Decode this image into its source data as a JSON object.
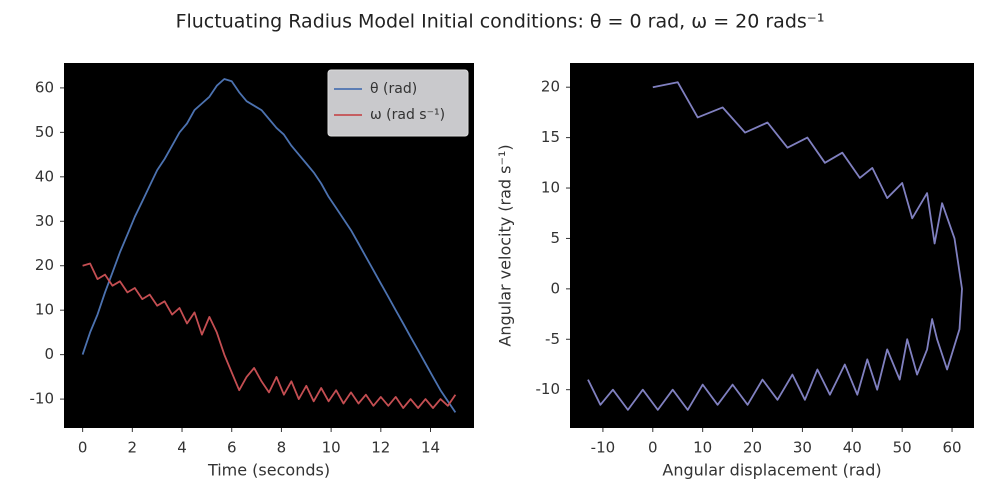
{
  "title": "Fluctuating Radius Model Initial conditions: θ = 0 rad, ω = 20 rads⁻¹",
  "chart_data": [
    {
      "type": "line",
      "xlabel": "Time (seconds)",
      "legend": "upper right",
      "x": [
        0,
        0.3,
        0.6,
        0.9,
        1.2,
        1.5,
        1.8,
        2.1,
        2.4,
        2.7,
        3.0,
        3.3,
        3.6,
        3.9,
        4.2,
        4.5,
        4.8,
        5.1,
        5.4,
        5.7,
        6.0,
        6.3,
        6.6,
        6.9,
        7.2,
        7.5,
        7.8,
        8.1,
        8.4,
        8.7,
        9.0,
        9.3,
        9.6,
        9.9,
        10.2,
        10.5,
        10.8,
        11.1,
        11.4,
        11.7,
        12.0,
        12.3,
        12.6,
        12.9,
        13.2,
        13.5,
        13.8,
        14.1,
        14.4,
        14.7,
        15.0
      ],
      "series": [
        {
          "name": "θ (rad)",
          "color": "#4c72b0",
          "values": [
            0,
            5,
            9,
            14,
            18.5,
            23,
            27,
            31,
            34.5,
            38,
            41.5,
            44,
            47,
            50,
            52,
            55,
            56.5,
            58,
            60.5,
            62,
            61.5,
            59,
            57,
            56,
            55,
            53,
            51,
            49.5,
            47,
            45,
            43,
            41,
            38.5,
            35.5,
            33,
            30.5,
            28,
            25,
            22,
            19,
            16,
            13,
            10,
            7,
            4,
            1,
            -2,
            -5,
            -8,
            -10.5,
            -13
          ]
        },
        {
          "name": "ω (rad s⁻¹)",
          "color": "#c44e52",
          "values": [
            20,
            20.5,
            17,
            18,
            15.5,
            16.5,
            14,
            15,
            12.5,
            13.5,
            11,
            12,
            9,
            10.5,
            7,
            9.5,
            4.5,
            8.5,
            5,
            0,
            -4,
            -8,
            -5,
            -3,
            -6,
            -8.5,
            -5,
            -9,
            -6,
            -10,
            -7,
            -10.5,
            -7.5,
            -10.5,
            -8,
            -11,
            -8.5,
            -11,
            -9,
            -11.5,
            -9.5,
            -11.5,
            -9.5,
            -12,
            -10,
            -12,
            -10,
            -12,
            -10,
            -11.5,
            -9
          ]
        }
      ],
      "xlim": [
        -0.75,
        15.75
      ],
      "xticks": [
        0,
        2,
        4,
        6,
        8,
        10,
        12,
        14
      ],
      "ylim": [
        -16.5,
        65.6
      ],
      "yticks": [
        -10,
        0,
        10,
        20,
        30,
        40,
        50,
        60
      ]
    },
    {
      "type": "line",
      "xlabel": "Angular displacement (rad)",
      "ylabel": "Angular velocity (rad s⁻¹)",
      "x": [
        0,
        5,
        9,
        14,
        18.5,
        23,
        27,
        31,
        34.5,
        38,
        41.5,
        44,
        47,
        50,
        52,
        55,
        56.5,
        58,
        60.5,
        62,
        61.5,
        59,
        57,
        56,
        55,
        53,
        51,
        49.5,
        47,
        45,
        43,
        41,
        38.5,
        35.5,
        33,
        30.5,
        28,
        25,
        22,
        19,
        16,
        13,
        10,
        7,
        4,
        1,
        -2,
        -5,
        -8,
        -10.5,
        -13
      ],
      "series": [
        {
          "color": "#8080c0",
          "values": [
            20,
            20.5,
            17,
            18,
            15.5,
            16.5,
            14,
            15,
            12.5,
            13.5,
            11,
            12,
            9,
            10.5,
            7,
            9.5,
            4.5,
            8.5,
            5,
            0,
            -4,
            -8,
            -5,
            -3,
            -6,
            -8.5,
            -5,
            -9,
            -6,
            -10,
            -7,
            -10.5,
            -7.5,
            -10.5,
            -8,
            -11,
            -8.5,
            -11,
            -9,
            -11.5,
            -9.5,
            -11.5,
            -9.5,
            -12,
            -10,
            -12,
            -10,
            -12,
            -10,
            -11.5,
            -9
          ]
        }
      ],
      "xlim": [
        -16.6,
        64.4
      ],
      "xticks": [
        -10,
        0,
        10,
        20,
        30,
        40,
        50,
        60
      ],
      "ylim": [
        -13.8,
        22.4
      ],
      "yticks": [
        -10,
        -5,
        0,
        5,
        10,
        15,
        20
      ]
    }
  ]
}
